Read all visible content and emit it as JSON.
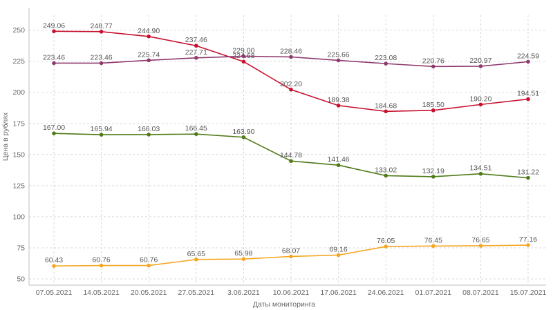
{
  "chart_data": {
    "type": "line",
    "xlabel": "Даты мониторинга",
    "ylabel": "Цена в рублях",
    "ylim": [
      45,
      262
    ],
    "yticks": [
      50,
      75,
      100,
      125,
      150,
      175,
      200,
      225,
      250
    ],
    "grid": true,
    "categories": [
      "07.05.2021",
      "14.05.2021",
      "20.05.2021",
      "27.05.2021",
      "3.06.2021",
      "10.06.2021",
      "17.06.2021",
      "24.06.2021",
      "01.07.2021",
      "08.07.2021",
      "15.07.2021"
    ],
    "series": [
      {
        "color": "#c8102e",
        "values": [
          249.06,
          248.77,
          244.9,
          237.46,
          224.68,
          202.2,
          189.38,
          184.68,
          185.5,
          190.2,
          194.51
        ],
        "labels": [
          "249.06",
          "248.77",
          "244.90",
          "237.46",
          "224.68",
          "202.20",
          "189.38",
          "184.68",
          "185.50",
          "190.20",
          "194.51"
        ]
      },
      {
        "color": "#8e3a6e",
        "values": [
          223.46,
          223.46,
          225.74,
          227.71,
          229.0,
          228.46,
          225.66,
          223.08,
          220.76,
          220.97,
          224.59
        ],
        "labels": [
          "223.46",
          "223.46",
          "225.74",
          "227.71",
          "229.00",
          "228.46",
          "225.66",
          "223.08",
          "220.76",
          "220.97",
          "224.59"
        ]
      },
      {
        "color": "#4f7a17",
        "values": [
          167.0,
          165.94,
          166.03,
          166.45,
          163.9,
          144.78,
          141.46,
          133.02,
          132.19,
          134.51,
          131.22
        ],
        "labels": [
          "167.00",
          "165.94",
          "166.03",
          "166.45",
          "163.90",
          "144.78",
          "141.46",
          "133.02",
          "132.19",
          "134.51",
          "131.22"
        ]
      },
      {
        "color": "#f5a623",
        "values": [
          60.43,
          60.76,
          60.76,
          65.65,
          65.98,
          68.07,
          69.16,
          76.05,
          76.45,
          76.65,
          77.16
        ],
        "labels": [
          "60.43",
          "60.76",
          "60.76",
          "65.65",
          "65.98",
          "68.07",
          "69.16",
          "76.05",
          "76.45",
          "76.65",
          "77.16"
        ]
      }
    ]
  }
}
